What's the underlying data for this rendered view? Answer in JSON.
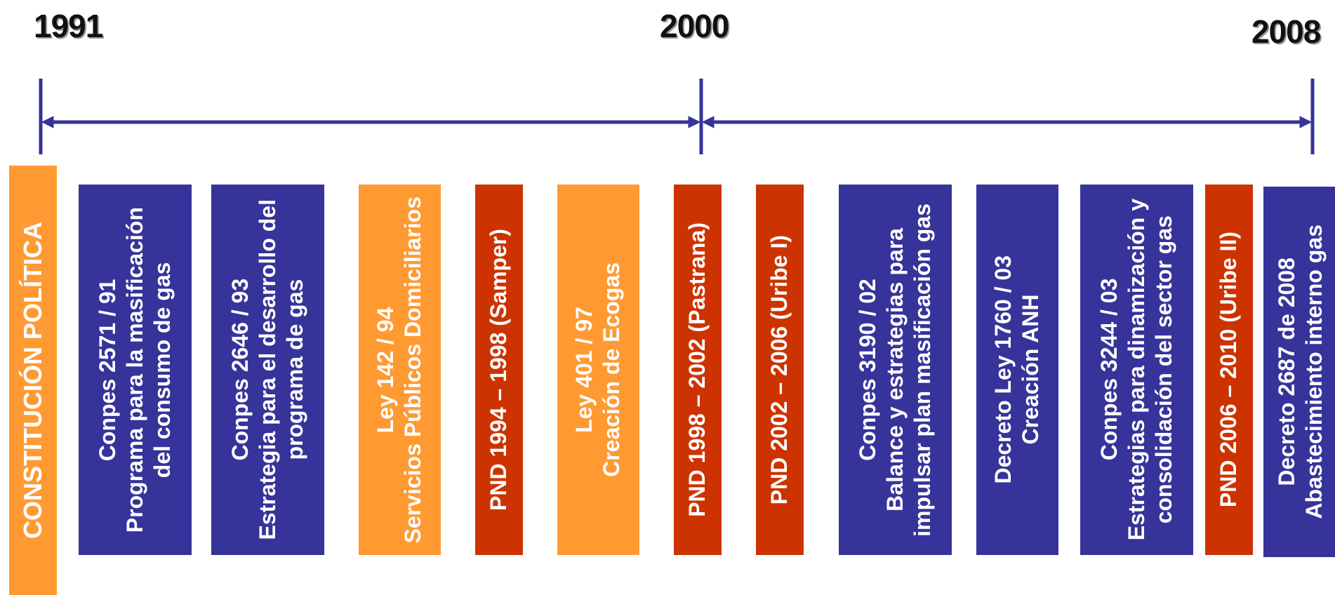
{
  "years": [
    "1991",
    "2000",
    "2008"
  ],
  "colors": {
    "blue": "#36339a",
    "orange": "#ff9a33",
    "red": "#cc3300",
    "axis": "#36339a"
  },
  "bars": [
    {
      "lines": [
        "CONSTITUCIÓN POLÍTICA"
      ],
      "color": "orange"
    },
    {
      "lines": [
        "Conpes 2571 / 91",
        "Programa para la masificación",
        "del consumo de gas"
      ],
      "color": "blue"
    },
    {
      "lines": [
        "Conpes 2646 / 93",
        "Estrategia para el desarrollo del",
        "programa de gas"
      ],
      "color": "blue"
    },
    {
      "lines": [
        "Ley 142 / 94",
        "Servicios Públicos Domiciliarios"
      ],
      "color": "orange"
    },
    {
      "lines": [
        "PND 1994 – 1998 (Samper)"
      ],
      "color": "red"
    },
    {
      "lines": [
        "Ley 401 / 97",
        "Creación de Ecogas"
      ],
      "color": "orange"
    },
    {
      "lines": [
        "PND 1998 – 2002 (Pastrana)"
      ],
      "color": "red"
    },
    {
      "lines": [
        "PND 2002 – 2006 (Uribe I)"
      ],
      "color": "red"
    },
    {
      "lines": [
        "Conpes 3190 / 02",
        "Balance y estrategias para",
        "impulsar plan masificación gas"
      ],
      "color": "blue"
    },
    {
      "lines": [
        "Decreto Ley 1760 / 03",
        "Creación ANH"
      ],
      "color": "blue"
    },
    {
      "lines": [
        "Conpes 3244 / 03",
        "Estrategias para dinamización y",
        "consolidación del sector gas"
      ],
      "color": "blue"
    },
    {
      "lines": [
        "PND 2006 – 2010 (Uribe II)"
      ],
      "color": "red"
    },
    {
      "lines": [
        "Decreto 2687 de 2008",
        "Abastecimiento interno gas"
      ],
      "color": "blue"
    }
  ]
}
